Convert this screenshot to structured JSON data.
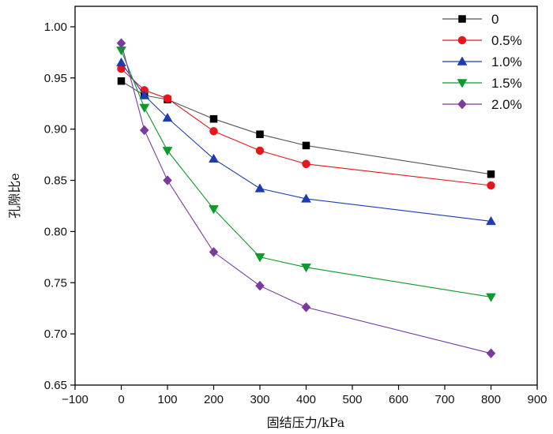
{
  "chart_data": {
    "type": "line",
    "title": "",
    "xlabel": "固结压力/kPa",
    "ylabel": "孔隙比e",
    "xlim": [
      -100,
      900
    ],
    "ylim": [
      0.65,
      1.02
    ],
    "xticks": [
      -100,
      0,
      100,
      200,
      300,
      400,
      500,
      600,
      700,
      800,
      900
    ],
    "yticks": [
      0.65,
      0.7,
      0.75,
      0.8,
      0.85,
      0.9,
      0.95,
      1.0
    ],
    "xtick_labels": [
      "−100",
      "0",
      "100",
      "200",
      "300",
      "400",
      "500",
      "600",
      "700",
      "800",
      "900"
    ],
    "ytick_labels": [
      "0.65",
      "0.70",
      "0.75",
      "0.80",
      "0.85",
      "0.90",
      "0.95",
      "1.00"
    ],
    "grid": false,
    "legend_position": "top-right",
    "x": [
      0,
      50,
      100,
      200,
      300,
      400,
      800
    ],
    "series": [
      {
        "name": "0",
        "color": "#000000",
        "marker": "square",
        "line_color": "#555555",
        "values": [
          0.947,
          0.933,
          0.929,
          0.91,
          0.895,
          0.884,
          0.856
        ]
      },
      {
        "name": "0.5%",
        "color": "#e8161b",
        "marker": "circle",
        "line_color": "#e8161b",
        "values": [
          0.959,
          0.938,
          0.93,
          0.898,
          0.879,
          0.866,
          0.845
        ]
      },
      {
        "name": "1.0%",
        "color": "#1a3cb5",
        "marker": "triangle-up",
        "line_color": "#1a3cb5",
        "values": [
          0.965,
          0.933,
          0.911,
          0.871,
          0.842,
          0.832,
          0.81
        ]
      },
      {
        "name": "1.5%",
        "color": "#0c9a2a",
        "marker": "triangle-down",
        "line_color": "#0c9a2a",
        "values": [
          0.977,
          0.921,
          0.879,
          0.822,
          0.775,
          0.765,
          0.736
        ]
      },
      {
        "name": "2.0%",
        "color": "#7b3a9e",
        "marker": "diamond",
        "line_color": "#7b3a9e",
        "values": [
          0.984,
          0.899,
          0.85,
          0.78,
          0.747,
          0.726,
          0.681
        ]
      }
    ]
  }
}
